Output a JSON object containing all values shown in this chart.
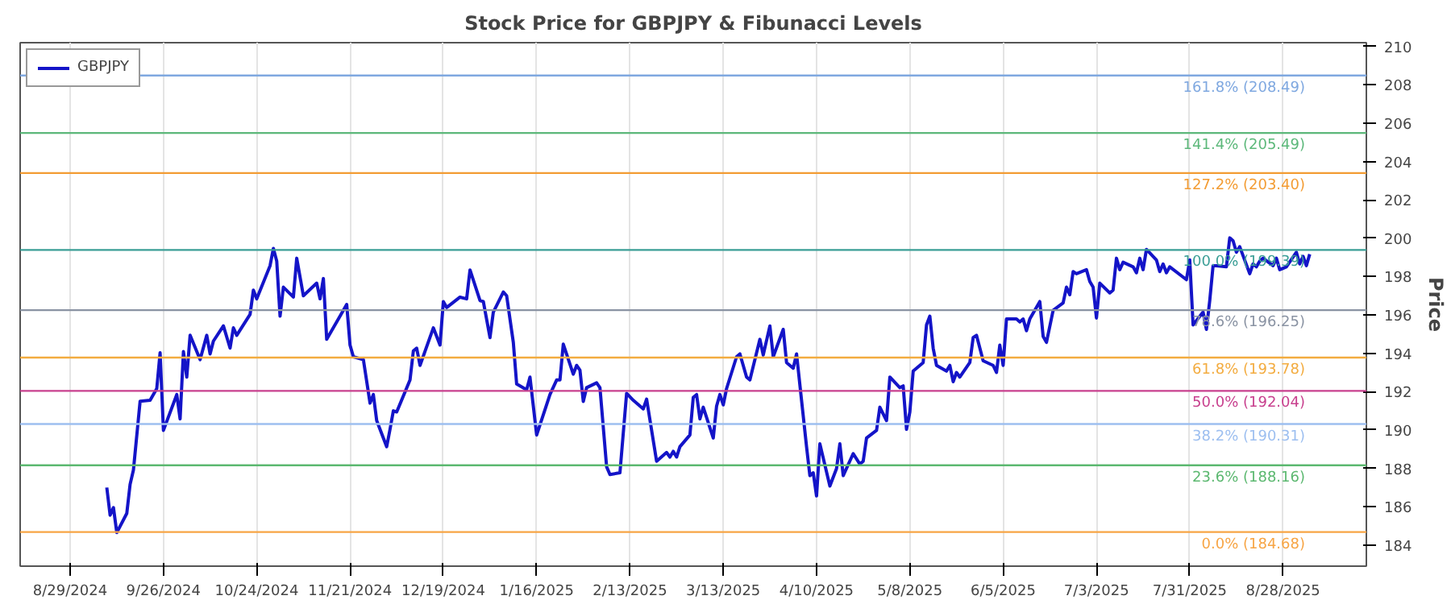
{
  "chart_data": {
    "type": "line",
    "title": "Stock Price for GBPJPY & Fibunacci Levels",
    "ylabel": "Price",
    "xlim": [
      "2024-08-14",
      "2025-09-22"
    ],
    "ylim": [
      182.9,
      210.2
    ],
    "xticks": [
      {
        "value": "2024-08-29",
        "label": "8/29/2024"
      },
      {
        "value": "2024-09-26",
        "label": "9/26/2024"
      },
      {
        "value": "2024-10-24",
        "label": "10/24/2024"
      },
      {
        "value": "2024-11-21",
        "label": "11/21/2024"
      },
      {
        "value": "2024-12-19",
        "label": "12/19/2024"
      },
      {
        "value": "2025-01-16",
        "label": "1/16/2025"
      },
      {
        "value": "2025-02-13",
        "label": "2/13/2025"
      },
      {
        "value": "2025-03-13",
        "label": "3/13/2025"
      },
      {
        "value": "2025-04-10",
        "label": "4/10/2025"
      },
      {
        "value": "2025-05-08",
        "label": "5/8/2025"
      },
      {
        "value": "2025-06-05",
        "label": "6/5/2025"
      },
      {
        "value": "2025-07-03",
        "label": "7/3/2025"
      },
      {
        "value": "2025-07-31",
        "label": "7/31/2025"
      },
      {
        "value": "2025-08-28",
        "label": "8/28/2025"
      }
    ],
    "yticks": [
      184,
      186,
      188,
      190,
      192,
      194,
      196,
      198,
      200,
      202,
      204,
      206,
      208,
      210
    ],
    "grid": "x",
    "legend": "top left",
    "line_style": "solid",
    "series": [
      {
        "name": "GBPJPY",
        "color": "#1414c8",
        "x": [
          "2024-09-09",
          "2024-09-10",
          "2024-09-11",
          "2024-09-12",
          "2024-09-15",
          "2024-09-16",
          "2024-09-17",
          "2024-09-19",
          "2024-09-22",
          "2024-09-24",
          "2024-09-25",
          "2024-09-26",
          "2024-09-30",
          "2024-10-01",
          "2024-10-02",
          "2024-10-03",
          "2024-10-04",
          "2024-10-07",
          "2024-10-09",
          "2024-10-10",
          "2024-10-11",
          "2024-10-14",
          "2024-10-16",
          "2024-10-17",
          "2024-10-18",
          "2024-10-22",
          "2024-10-23",
          "2024-10-24",
          "2024-10-28",
          "2024-10-29",
          "2024-10-30",
          "2024-10-31",
          "2024-11-01",
          "2024-11-04",
          "2024-11-05",
          "2024-11-07",
          "2024-11-11",
          "2024-11-12",
          "2024-11-13",
          "2024-11-14",
          "2024-11-18",
          "2024-11-20",
          "2024-11-21",
          "2024-11-22",
          "2024-11-25",
          "2024-11-27",
          "2024-11-28",
          "2024-11-29",
          "2024-12-02",
          "2024-12-03",
          "2024-12-04",
          "2024-12-05",
          "2024-12-09",
          "2024-12-10",
          "2024-12-11",
          "2024-12-12",
          "2024-12-16",
          "2024-12-18",
          "2024-12-19",
          "2024-12-20",
          "2024-12-24",
          "2024-12-26",
          "2024-12-27",
          "2024-12-30",
          "2024-12-31",
          "2025-01-02",
          "2025-01-03",
          "2025-01-06",
          "2025-01-07",
          "2025-01-09",
          "2025-01-10",
          "2025-01-13",
          "2025-01-14",
          "2025-01-16",
          "2025-01-20",
          "2025-01-22",
          "2025-01-23",
          "2025-01-24",
          "2025-01-27",
          "2025-01-28",
          "2025-01-29",
          "2025-01-30",
          "2025-01-31",
          "2025-02-03",
          "2025-02-04",
          "2025-02-06",
          "2025-02-07",
          "2025-02-10",
          "2025-02-12",
          "2025-02-14",
          "2025-02-17",
          "2025-02-18",
          "2025-02-21",
          "2025-02-24",
          "2025-02-25",
          "2025-02-26",
          "2025-02-27",
          "2025-02-28",
          "2025-03-03",
          "2025-03-04",
          "2025-03-05",
          "2025-03-06",
          "2025-03-07",
          "2025-03-10",
          "2025-03-11",
          "2025-03-12",
          "2025-03-13",
          "2025-03-14",
          "2025-03-17",
          "2025-03-18",
          "2025-03-20",
          "2025-03-21",
          "2025-03-24",
          "2025-03-25",
          "2025-03-27",
          "2025-03-28",
          "2025-03-31",
          "2025-04-01",
          "2025-04-03",
          "2025-04-04",
          "2025-04-07",
          "2025-04-08",
          "2025-04-09",
          "2025-04-10",
          "2025-04-11",
          "2025-04-14",
          "2025-04-16",
          "2025-04-17",
          "2025-04-18",
          "2025-04-21",
          "2025-04-23",
          "2025-04-24",
          "2025-04-25",
          "2025-04-28",
          "2025-04-29",
          "2025-05-01",
          "2025-05-02",
          "2025-05-05",
          "2025-05-06",
          "2025-05-07",
          "2025-05-08",
          "2025-05-09",
          "2025-05-12",
          "2025-05-13",
          "2025-05-14",
          "2025-05-15",
          "2025-05-16",
          "2025-05-19",
          "2025-05-20",
          "2025-05-21",
          "2025-05-22",
          "2025-05-23",
          "2025-05-26",
          "2025-05-27",
          "2025-05-28",
          "2025-05-30",
          "2025-06-02",
          "2025-06-03",
          "2025-06-04",
          "2025-06-05",
          "2025-06-06",
          "2025-06-09",
          "2025-06-10",
          "2025-06-11",
          "2025-06-12",
          "2025-06-13",
          "2025-06-16",
          "2025-06-17",
          "2025-06-18",
          "2025-06-20",
          "2025-06-23",
          "2025-06-24",
          "2025-06-25",
          "2025-06-26",
          "2025-06-27",
          "2025-06-30",
          "2025-07-01",
          "2025-07-02",
          "2025-07-03",
          "2025-07-04",
          "2025-07-07",
          "2025-07-08",
          "2025-07-09",
          "2025-07-10",
          "2025-07-11",
          "2025-07-14",
          "2025-07-15",
          "2025-07-16",
          "2025-07-17",
          "2025-07-18",
          "2025-07-21",
          "2025-07-22",
          "2025-07-23",
          "2025-07-24",
          "2025-07-25",
          "2025-07-30",
          "2025-07-31",
          "2025-08-01",
          "2025-08-04",
          "2025-08-05",
          "2025-08-06",
          "2025-08-07",
          "2025-08-08",
          "2025-08-11",
          "2025-08-12",
          "2025-08-13",
          "2025-08-14",
          "2025-08-15",
          "2025-08-18",
          "2025-08-19",
          "2025-08-20",
          "2025-08-21",
          "2025-08-22",
          "2025-08-25",
          "2025-08-26",
          "2025-08-27",
          "2025-08-29",
          "2025-09-01",
          "2025-09-02",
          "2025-09-03",
          "2025-09-04",
          "2025-09-05"
        ],
        "values": [
          187.0,
          185.56,
          185.95,
          184.65,
          185.65,
          187.17,
          187.92,
          191.5,
          191.55,
          192.16,
          194.03,
          189.98,
          191.85,
          190.58,
          194.09,
          192.76,
          194.94,
          193.67,
          194.94,
          193.97,
          194.64,
          195.43,
          194.27,
          195.33,
          194.94,
          196.03,
          197.3,
          196.84,
          198.57,
          199.47,
          198.81,
          195.94,
          197.45,
          196.93,
          198.96,
          197.0,
          197.66,
          196.84,
          197.9,
          194.73,
          195.94,
          196.55,
          194.43,
          193.82,
          193.67,
          191.4,
          191.85,
          190.49,
          189.13,
          190.04,
          191.0,
          190.94,
          192.61,
          194.12,
          194.27,
          193.37,
          195.33,
          194.43,
          196.7,
          196.39,
          196.93,
          196.84,
          198.35,
          196.75,
          196.7,
          194.82,
          196.15,
          197.2,
          197.0,
          194.57,
          192.4,
          192.1,
          192.76,
          189.74,
          191.85,
          192.61,
          192.61,
          194.48,
          192.91,
          193.37,
          193.12,
          191.49,
          192.21,
          192.46,
          192.21,
          188.08,
          187.68,
          187.77,
          191.91,
          191.55,
          191.1,
          191.61,
          188.37,
          188.83,
          188.59,
          188.89,
          188.59,
          189.13,
          189.74,
          191.7,
          191.85,
          190.58,
          191.19,
          189.58,
          191.25,
          191.85,
          191.31,
          192.16,
          193.82,
          193.97,
          192.76,
          192.61,
          194.73,
          193.91,
          195.43,
          193.82,
          195.25,
          193.52,
          193.22,
          193.97,
          189.13,
          187.62,
          187.77,
          186.56,
          189.28,
          187.08,
          187.99,
          189.28,
          187.62,
          188.77,
          188.22,
          188.37,
          189.58,
          189.98,
          191.19,
          190.49,
          192.76,
          192.21,
          192.3,
          190.04,
          190.94,
          193.07,
          193.52,
          195.48,
          195.94,
          194.27,
          193.37,
          193.07,
          193.37,
          192.52,
          193.0,
          192.76,
          193.52,
          194.82,
          194.94,
          193.61,
          193.37,
          193.0,
          194.43,
          193.37,
          195.79,
          195.79,
          195.64,
          195.79,
          195.18,
          195.79,
          196.7,
          194.88,
          194.57,
          196.24,
          196.63,
          197.45,
          197.06,
          198.26,
          198.15,
          198.36,
          197.75,
          197.45,
          195.84,
          197.66,
          197.15,
          197.3,
          198.96,
          198.36,
          198.75,
          198.51,
          198.2,
          198.96,
          198.36,
          199.42,
          198.87,
          198.26,
          198.66,
          198.2,
          198.51,
          197.84,
          198.87,
          195.48,
          196.15,
          195.25,
          196.75,
          198.57,
          198.57,
          198.51,
          200.02,
          199.87,
          199.27,
          199.56,
          198.15,
          198.66,
          198.51,
          198.81,
          198.96,
          198.57,
          198.96,
          198.36,
          198.51,
          199.27,
          198.66,
          199.06,
          198.57,
          199.17
        ]
      }
    ],
    "ref_lines": [
      {
        "axis": "y",
        "value": 208.49,
        "label": "161.8% (208.49)",
        "color": "#7fa8e0"
      },
      {
        "axis": "y",
        "value": 205.49,
        "label": "141.4% (205.49)",
        "color": "#5cb87a"
      },
      {
        "axis": "y",
        "value": 203.4,
        "label": "127.2% (203.40)",
        "color": "#f39c33"
      },
      {
        "axis": "y",
        "value": 199.39,
        "label": "100.0% (199.39)",
        "color": "#3a9e96"
      },
      {
        "axis": "y",
        "value": 196.25,
        "label": "78.6% (196.25)",
        "color": "#8a93a3"
      },
      {
        "axis": "y",
        "value": 193.78,
        "label": "61.8% (193.78)",
        "color": "#f3ac40"
      },
      {
        "axis": "y",
        "value": 192.04,
        "label": "50.0% (192.04)",
        "color": "#c8408e"
      },
      {
        "axis": "y",
        "value": 190.31,
        "label": "38.2% (190.31)",
        "color": "#9dbff0"
      },
      {
        "axis": "y",
        "value": 188.16,
        "label": "23.6% (188.16)",
        "color": "#5cb870"
      },
      {
        "axis": "y",
        "value": 184.68,
        "label": "0.0% (184.68)",
        "color": "#f7a545"
      }
    ]
  }
}
